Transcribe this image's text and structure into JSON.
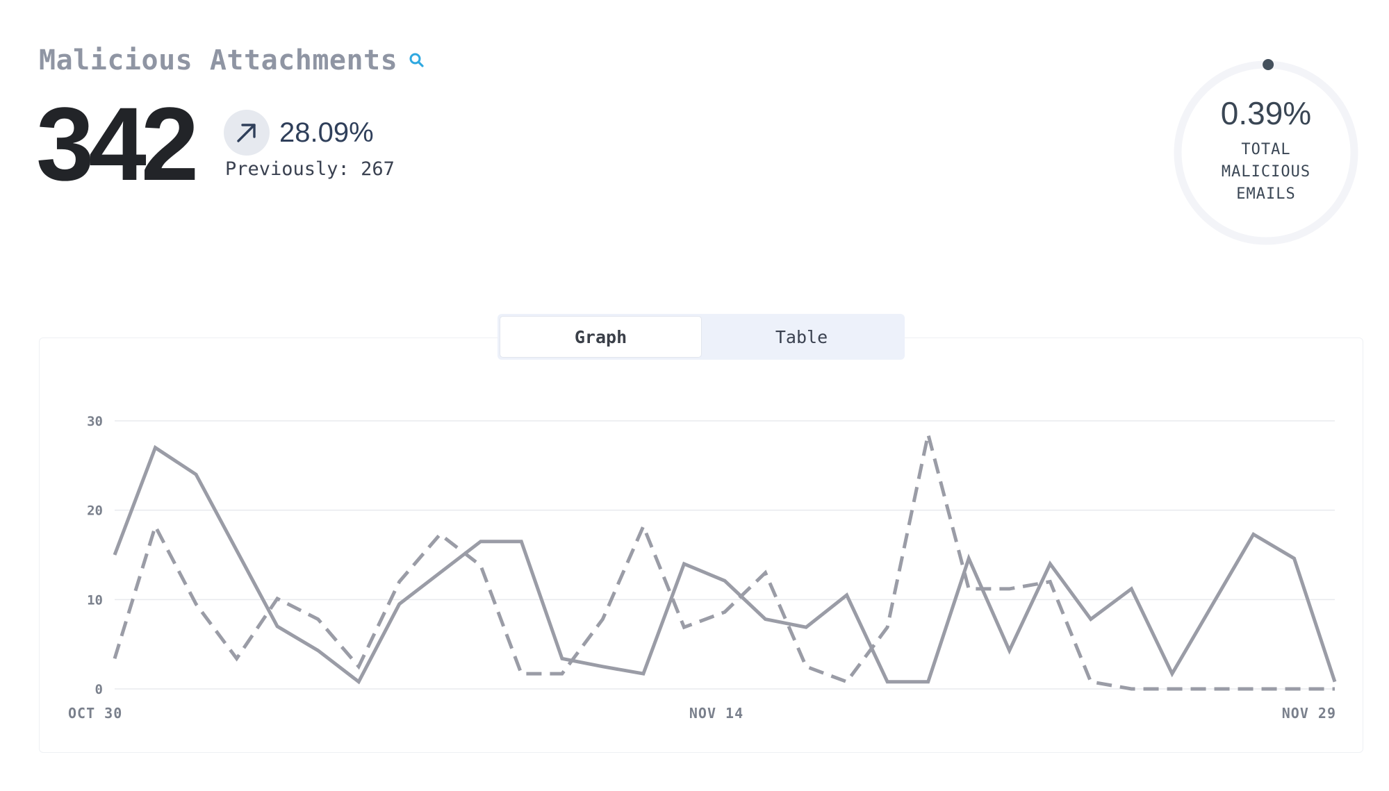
{
  "header": {
    "title": "Malicious Attachments",
    "search_icon": "search-icon",
    "count": "342",
    "trend": {
      "direction_icon": "arrow-up-right-icon",
      "percent": "28.09%",
      "previously": "Previously: 267"
    }
  },
  "summary_ring": {
    "percent_label": "0.39%",
    "percent_value": 0.39,
    "label_lines": [
      "TOTAL",
      "MALICIOUS",
      "EMAILS"
    ]
  },
  "view_toggle": {
    "options": [
      "Graph",
      "Table"
    ],
    "selected": "Graph"
  },
  "colors": {
    "line": "#9a9ca6",
    "grid": "#e8eaee",
    "ring_track": "#f3f4f8",
    "ring_dot": "#44505c"
  },
  "chart_data": {
    "type": "line",
    "x_tick_labels": [
      "OCT 30",
      "NOV 14",
      "NOV 29"
    ],
    "ylim": [
      0,
      30
    ],
    "y_ticks": [
      0,
      10,
      20,
      30
    ],
    "grid": "horizontal",
    "series": [
      {
        "style": "solid",
        "values": [
          15,
          27,
          24,
          15.5,
          7,
          4.3,
          0.8,
          9.5,
          13,
          16.5,
          16.5,
          3.4,
          2.5,
          1.7,
          14,
          12.1,
          7.8,
          6.9,
          10.5,
          0.8,
          0.8,
          14.6,
          4.3,
          14,
          7.8,
          11.2,
          1.7,
          9.5,
          17.3,
          14.6,
          0.8
        ]
      },
      {
        "style": "dashed",
        "values": [
          3.4,
          18.2,
          9.5,
          3.4,
          10.1,
          7.8,
          2.5,
          12,
          17.3,
          13.8,
          1.7,
          1.7,
          7.8,
          18.2,
          6.9,
          8.6,
          13,
          2.5,
          0.8,
          6.9,
          28.5,
          11.2,
          11.2,
          12,
          0.8,
          0,
          0,
          0,
          0,
          0,
          0
        ]
      }
    ]
  }
}
